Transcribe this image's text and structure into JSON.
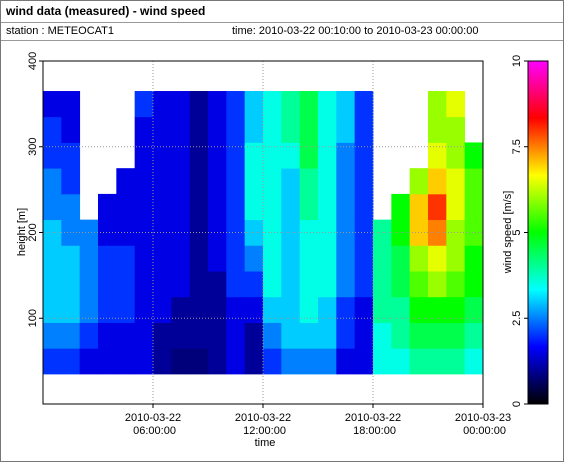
{
  "header": {
    "title": "wind data (measured) - wind speed",
    "station": "station : METEOCAT1",
    "time_range": "time: 2010-03-22 00:10:00 to 2010-03-23 00:00:00"
  },
  "chart_data": {
    "type": "heatmap",
    "xlabel": "time",
    "ylabel": "height [m]",
    "colorbar_label": "wind speed [m/s]",
    "xlim": [
      "2010-03-22 00:00:00",
      "2010-03-23 00:00:00"
    ],
    "xticks": [
      "2010-03-22 06:00:00",
      "2010-03-22 12:00:00",
      "2010-03-22 18:00:00",
      "2010-03-23 00:00:00"
    ],
    "ylim": [
      0,
      400
    ],
    "yticks": [
      100,
      200,
      300,
      400
    ],
    "zlim": [
      0,
      10
    ],
    "zticks": [
      0,
      2.5,
      5,
      7.5,
      10
    ],
    "colormap": [
      "#000000",
      "#0000ff",
      "#00ffff",
      "#00ff00",
      "#ffff00",
      "#ff0000",
      "#ff00ff"
    ],
    "grid": true,
    "x": [
      "2010-03-22 00:30:00",
      "2010-03-22 01:30:00",
      "2010-03-22 02:30:00",
      "2010-03-22 03:30:00",
      "2010-03-22 04:30:00",
      "2010-03-22 05:30:00",
      "2010-03-22 06:30:00",
      "2010-03-22 07:30:00",
      "2010-03-22 08:30:00",
      "2010-03-22 09:30:00",
      "2010-03-22 10:30:00",
      "2010-03-22 11:30:00",
      "2010-03-22 12:30:00",
      "2010-03-22 13:30:00",
      "2010-03-22 14:30:00",
      "2010-03-22 15:30:00",
      "2010-03-22 16:30:00",
      "2010-03-22 17:30:00",
      "2010-03-22 18:30:00",
      "2010-03-22 19:30:00",
      "2010-03-22 20:30:00",
      "2010-03-22 21:30:00",
      "2010-03-22 22:30:00",
      "2010-03-22 23:30:00"
    ],
    "y": [
      50,
      80,
      110,
      140,
      170,
      200,
      230,
      260,
      290,
      320,
      350
    ],
    "values": [
      [
        2,
        2.5,
        3,
        3,
        3,
        3,
        2.5,
        2.5,
        2,
        2,
        1.5
      ],
      [
        2,
        2.5,
        3,
        3,
        3,
        2.5,
        2.5,
        2,
        2,
        1.5,
        1.5
      ],
      [
        1.5,
        2,
        2.5,
        2.5,
        2.5,
        2.5,
        null,
        null,
        null,
        null,
        null
      ],
      [
        1.5,
        1.5,
        2,
        2,
        2,
        1.5,
        1.5,
        null,
        null,
        null,
        null
      ],
      [
        1.5,
        1.5,
        2,
        2,
        2,
        1.5,
        1.5,
        1.5,
        null,
        null,
        null
      ],
      [
        1.5,
        1.5,
        1.5,
        1.5,
        1.5,
        1.5,
        1.5,
        1.5,
        1.5,
        1.5,
        2
      ],
      [
        1,
        1,
        1.5,
        1.5,
        1.5,
        1.5,
        1.5,
        1.5,
        1.5,
        1.5,
        1.5
      ],
      [
        0.8,
        1,
        1,
        1.5,
        1.5,
        1.5,
        1.5,
        1.5,
        1.5,
        1.5,
        1.5
      ],
      [
        0.8,
        1,
        1,
        1,
        1,
        1,
        1,
        1,
        1,
        1,
        1
      ],
      [
        1,
        1,
        1,
        1,
        1.5,
        1.5,
        1.5,
        1.5,
        1.5,
        1.5,
        1.5
      ],
      [
        1.5,
        1.5,
        1.5,
        2,
        2,
        2,
        2,
        2,
        2,
        2,
        2
      ],
      [
        1,
        1,
        1.5,
        2,
        2.5,
        3,
        3.5,
        3.5,
        3.5,
        3,
        3
      ],
      [
        2,
        2.5,
        3,
        3.5,
        3.5,
        3.5,
        3.5,
        3.5,
        3.5,
        3.5,
        3.5
      ],
      [
        2.5,
        3,
        3,
        3,
        3,
        3,
        3,
        3,
        3.5,
        4,
        4
      ],
      [
        2.5,
        3,
        3.5,
        3.5,
        3.5,
        3.5,
        4,
        4,
        4.5,
        4.5,
        4.5
      ],
      [
        2.5,
        3,
        3,
        3.5,
        3.5,
        3.5,
        3.5,
        3.5,
        3.5,
        3.5,
        3.5
      ],
      [
        1.5,
        2,
        2,
        2.5,
        2.5,
        2.5,
        2.5,
        2.5,
        2.5,
        3,
        3
      ],
      [
        1.5,
        1.5,
        1.5,
        2,
        2,
        2,
        2,
        2,
        2,
        2,
        2
      ],
      [
        3.5,
        3.5,
        4,
        4,
        4,
        4,
        null,
        null,
        null,
        null,
        null
      ],
      [
        3.5,
        4,
        4,
        4.5,
        4.5,
        5,
        5,
        null,
        null,
        null,
        null
      ],
      [
        4,
        4.5,
        5,
        5.5,
        6,
        7,
        7,
        6,
        null,
        null,
        null
      ],
      [
        4,
        4.5,
        5,
        6,
        6.5,
        7.5,
        8,
        7,
        6.5,
        6,
        6
      ],
      [
        4,
        4.5,
        5,
        5.5,
        6,
        6,
        6.5,
        6.5,
        6,
        6,
        6.5
      ],
      [
        3.5,
        4,
        4.5,
        5,
        5,
        5.5,
        5.5,
        5.5,
        5,
        null,
        null
      ]
    ]
  }
}
